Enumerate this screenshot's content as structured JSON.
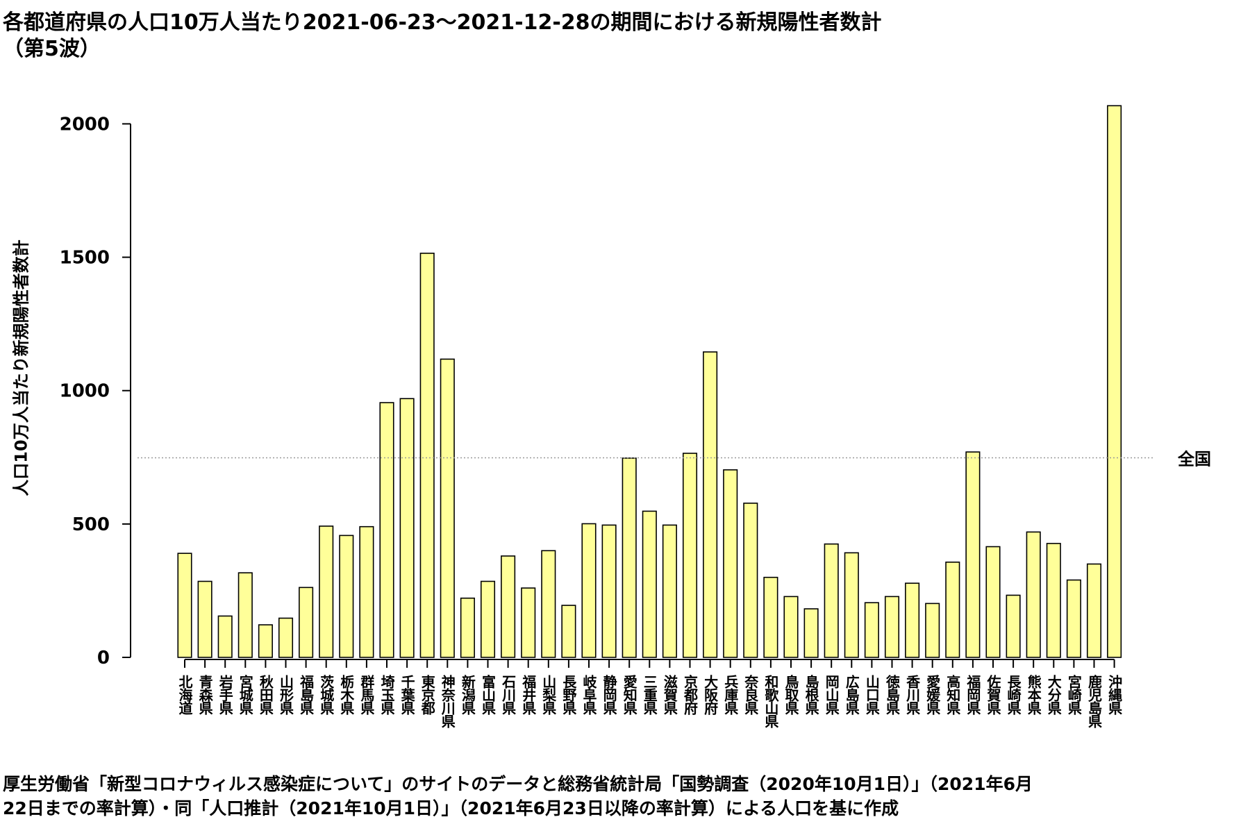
{
  "title": {
    "line1": "各都道府県の人口10万人当たり2021-06-23〜2021-12-28の期間における新規陽性者数計",
    "line2": "（第5波）"
  },
  "footer": {
    "line1": "厚生労働省「新型コロナウィルス感染症について」のサイトのデータと総務省統計局「国勢調査（2020年10月1日）」（2021年6月",
    "line2": "22日までの率計算）・同「人口推計（2021年10月1日）」（2021年6月23日以降の率計算）による人口を基に作成"
  },
  "colors": {
    "bar_fill": "#ffff99",
    "bar_stroke": "#000000",
    "reference_line": "#999999"
  },
  "chart_data": {
    "type": "bar",
    "title": "各都道府県の人口10万人当たり2021-06-23〜2021-12-28の期間における新規陽性者数計（第5波）",
    "xlabel": "",
    "ylabel": "人口10万人当たり新規陽性者数計",
    "ylim": [
      0,
      2100
    ],
    "yticks": [
      0,
      500,
      1000,
      1500,
      2000
    ],
    "grid": false,
    "categories": [
      "北海道",
      "青森県",
      "岩手県",
      "宮城県",
      "秋田県",
      "山形県",
      "福島県",
      "茨城県",
      "栃木県",
      "群馬県",
      "埼玉県",
      "千葉県",
      "東京都",
      "神奈川県",
      "新潟県",
      "富山県",
      "石川県",
      "福井県",
      "山梨県",
      "長野県",
      "岐阜県",
      "静岡県",
      "愛知県",
      "三重県",
      "滋賀県",
      "京都府",
      "大阪府",
      "兵庫県",
      "奈良県",
      "和歌山県",
      "鳥取県",
      "島根県",
      "岡山県",
      "広島県",
      "山口県",
      "徳島県",
      "香川県",
      "愛媛県",
      "高知県",
      "福岡県",
      "佐賀県",
      "長崎県",
      "熊本県",
      "大分県",
      "宮崎県",
      "鹿児島県",
      "沖縄県"
    ],
    "values": [
      390,
      285,
      155,
      317,
      122,
      147,
      262,
      492,
      457,
      490,
      955,
      970,
      1515,
      1118,
      222,
      285,
      380,
      260,
      400,
      195,
      501,
      496,
      747,
      548,
      496,
      765,
      1145,
      703,
      578,
      300,
      228,
      182,
      425,
      392,
      205,
      228,
      278,
      202,
      357,
      770,
      415,
      233,
      470,
      427,
      290,
      350,
      2068
    ],
    "reference_line": {
      "label": "全国",
      "value": 748
    }
  }
}
